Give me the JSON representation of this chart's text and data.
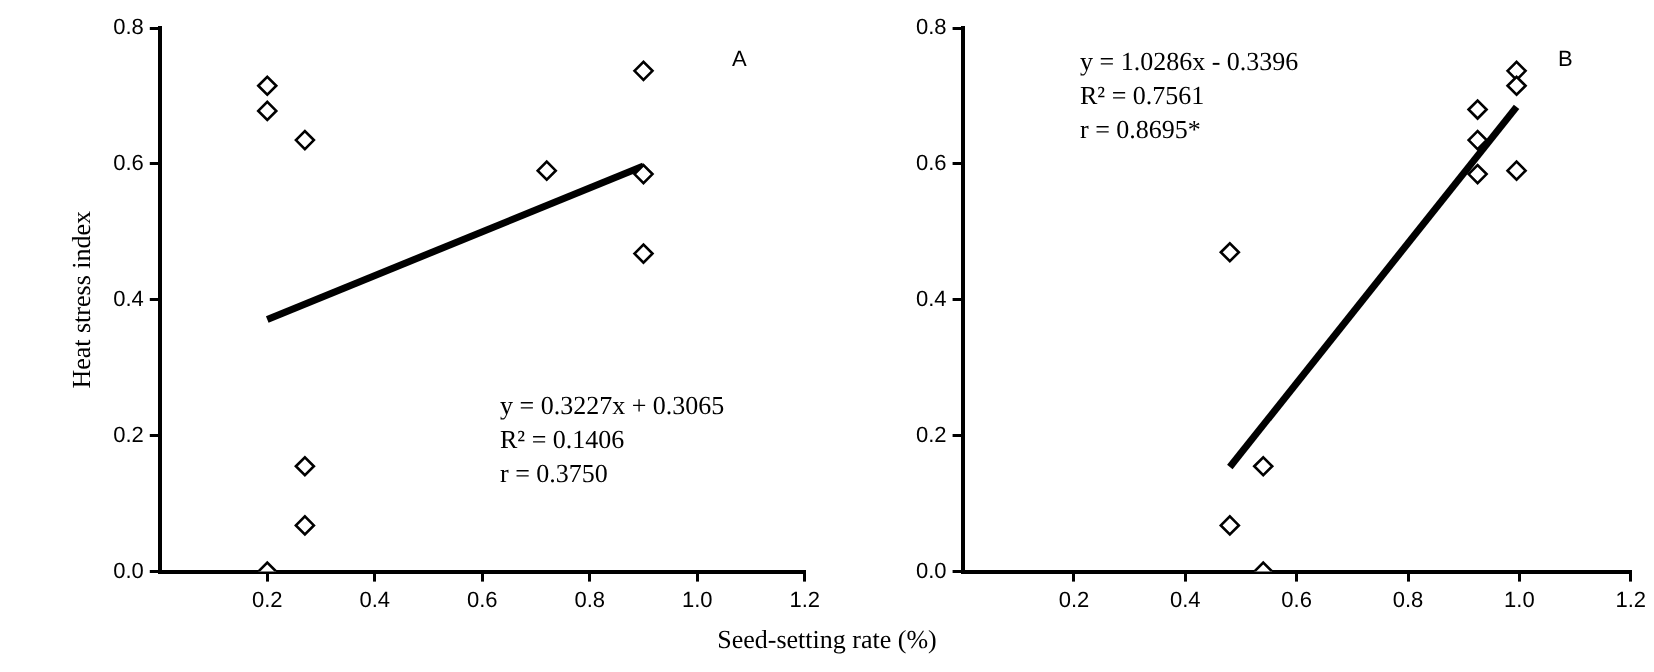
{
  "chart_data": [
    {
      "type": "scatter",
      "ylabel": "Heat stress index",
      "xlabel": "Seed-setting rate (%)",
      "marker": "diamond",
      "grid": false,
      "legend": false,
      "xlim": [
        0,
        1.2
      ],
      "ylim": [
        0,
        0.8
      ],
      "yticks": [
        {
          "value": 0,
          "label": "0.0"
        },
        0.2,
        0.4,
        0.6,
        0.8
      ],
      "xticks": [
        0.2,
        0.4,
        0.6,
        0.8,
        {
          "value": 1,
          "label": "1.0"
        },
        1.2
      ],
      "annotations": [
        "A",
        "y = 0.3227x + 0.3065",
        "R² = 0.1406",
        "r = 0.3750"
      ],
      "series": [
        {
          "type": "scatter",
          "color": "#000000",
          "x": [
            0.2,
            0.2,
            0.27,
            0.27,
            0.27,
            0.2,
            0.72,
            0.9,
            0.9,
            0.9
          ],
          "values": [
            0.715,
            0.678,
            0.635,
            0.155,
            0.068,
            0.0,
            0.59,
            0.737,
            0.585,
            0.468
          ]
        },
        {
          "type": "line",
          "color": "#000000",
          "marker": "none",
          "x": [
            0.2,
            0.9
          ],
          "values": [
            0.371,
            0.597
          ]
        }
      ]
    },
    {
      "type": "scatter",
      "marker": "diamond",
      "grid": false,
      "legend": false,
      "xlim": [
        0,
        1.2
      ],
      "ylim": [
        0,
        0.8
      ],
      "yticks": [
        {
          "value": 0,
          "label": "0.0"
        },
        0.2,
        0.4,
        0.6,
        0.8
      ],
      "xticks": [
        0.2,
        0.4,
        0.6,
        0.8,
        {
          "value": 1,
          "label": "1.0"
        },
        1.2
      ],
      "annotations": [
        "B",
        "y = 1.0286x - 0.3396",
        "R² = 0.7561",
        "r = 0.8695*"
      ],
      "series": [
        {
          "type": "scatter",
          "color": "#000000",
          "x": [
            0.48,
            0.48,
            0.54,
            0.54,
            0.925,
            0.925,
            0.925,
            0.995,
            0.995,
            0.995
          ],
          "values": [
            0.47,
            0.068,
            0.155,
            0.0,
            0.68,
            0.635,
            0.585,
            0.737,
            0.715,
            0.59
          ]
        },
        {
          "type": "line",
          "color": "#000000",
          "marker": "none",
          "x": [
            0.48,
            0.995
          ],
          "values": [
            0.154,
            0.684
          ]
        }
      ]
    }
  ]
}
